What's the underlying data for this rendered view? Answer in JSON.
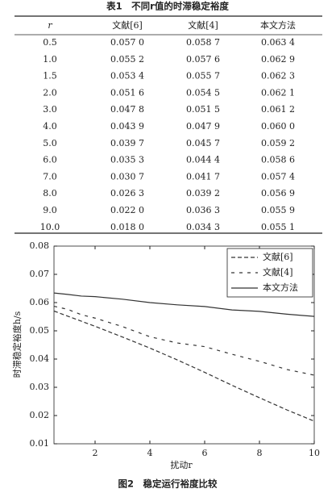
{
  "table": {
    "caption": "表1　不同r值的时滞稳定裕度",
    "header": [
      "r",
      "文献[6]",
      "文献[4]",
      "本文方法"
    ],
    "rows": [
      [
        "0.5",
        "0.057 0",
        "0.058 7",
        "0.063 4"
      ],
      [
        "1.0",
        "0.055 2",
        "0.057 6",
        "0.062 9"
      ],
      [
        "1.5",
        "0.053 4",
        "0.055 7",
        "0.062 3"
      ],
      [
        "2.0",
        "0.051 6",
        "0.054 5",
        "0.062 1"
      ],
      [
        "3.0",
        "0.047 8",
        "0.051 5",
        "0.061 2"
      ],
      [
        "4.0",
        "0.043 9",
        "0.047 9",
        "0.060 0"
      ],
      [
        "5.0",
        "0.039 7",
        "0.045 7",
        "0.059 2"
      ],
      [
        "6.0",
        "0.035 3",
        "0.044 4",
        "0.058 6"
      ],
      [
        "7.0",
        "0.030 7",
        "0.041 7",
        "0.057 4"
      ],
      [
        "8.0",
        "0.026 3",
        "0.039 2",
        "0.056 9"
      ],
      [
        "9.0",
        "0.022 0",
        "0.036 3",
        "0.055 9"
      ],
      [
        "10.0",
        "0.018 0",
        "0.034 3",
        "0.055 1"
      ]
    ]
  },
  "chart_data": {
    "type": "line",
    "caption": "图2　稳定运行裕度比较",
    "xlabel": "扰动r",
    "ylabel": "时滞稳定裕度h/s",
    "x": [
      0.5,
      1,
      1.5,
      2,
      3,
      4,
      5,
      6,
      7,
      8,
      9,
      10
    ],
    "series": [
      {
        "name": "文献[6]",
        "color": "#333333",
        "style": "dashed",
        "values": [
          0.057,
          0.0552,
          0.0534,
          0.0516,
          0.0478,
          0.0439,
          0.0397,
          0.0353,
          0.0307,
          0.0263,
          0.022,
          0.018
        ]
      },
      {
        "name": "文献[4]",
        "color": "#333333",
        "style": "loose-dashed",
        "values": [
          0.0587,
          0.0576,
          0.0557,
          0.0545,
          0.0515,
          0.0479,
          0.0457,
          0.0444,
          0.0417,
          0.0392,
          0.0363,
          0.0343
        ]
      },
      {
        "name": "本文方法",
        "color": "#333333",
        "style": "solid",
        "values": [
          0.0634,
          0.0629,
          0.0623,
          0.0621,
          0.0612,
          0.06,
          0.0592,
          0.0586,
          0.0574,
          0.0569,
          0.0559,
          0.0551
        ]
      }
    ],
    "xlim": [
      0.5,
      10
    ],
    "xticks": [
      2,
      4,
      6,
      8,
      10
    ],
    "ylim": [
      0.01,
      0.08
    ],
    "yticks": [
      0.01,
      0.02,
      0.03,
      0.04,
      0.05,
      0.06,
      0.07,
      0.08
    ],
    "legend": "upper right",
    "grid": false
  }
}
